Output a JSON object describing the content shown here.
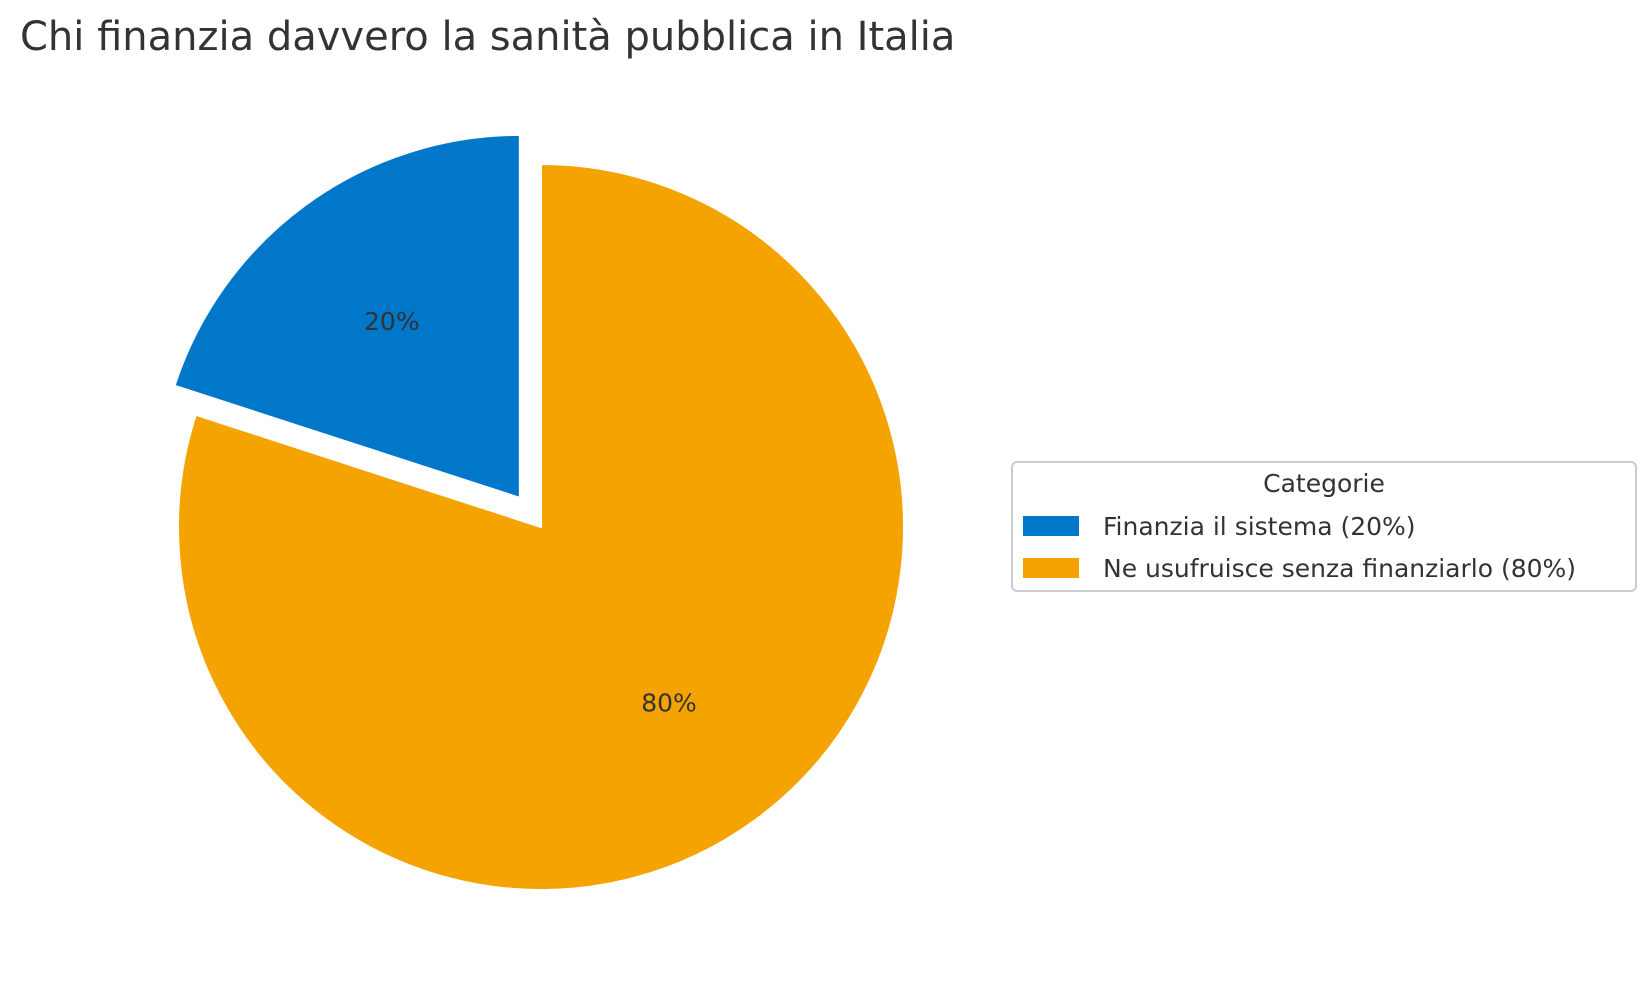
{
  "chart_data": {
    "type": "pie",
    "title": "Chi finanzia davvero la sanità pubblica in Italia",
    "categories": [
      "Finanzia il sistema (20%)",
      "Ne usufruisce senza finanziarlo (80%)"
    ],
    "values": [
      20,
      80
    ],
    "labels": [
      "20%",
      "80%"
    ],
    "colors": [
      "#0077C8",
      "#F4A300"
    ],
    "exploded": [
      true,
      false
    ],
    "start_angle": 90,
    "direction": "counterclockwise",
    "legend": {
      "title": "Categorie",
      "placement": "right"
    }
  }
}
